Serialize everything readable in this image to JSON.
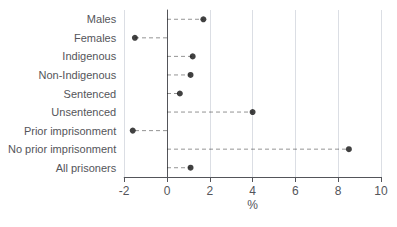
{
  "chart_data": {
    "type": "dot",
    "orientation": "horizontal",
    "categories": [
      "Males",
      "Females",
      "Indigenous",
      "Non-Indigenous",
      "Sentenced",
      "Unsentenced",
      "Prior imprisonment",
      "No prior imprisonment",
      "All prisoners"
    ],
    "values": [
      1.7,
      -1.5,
      1.2,
      1.1,
      0.6,
      4.0,
      -1.6,
      8.5,
      1.1
    ],
    "xlabel": "%",
    "xlim": [
      -2,
      10
    ],
    "xticks": [
      -2,
      0,
      2,
      4,
      6,
      8,
      10
    ],
    "grid": true,
    "color": "#111111",
    "marker": "circle",
    "line_style": "dashed"
  }
}
